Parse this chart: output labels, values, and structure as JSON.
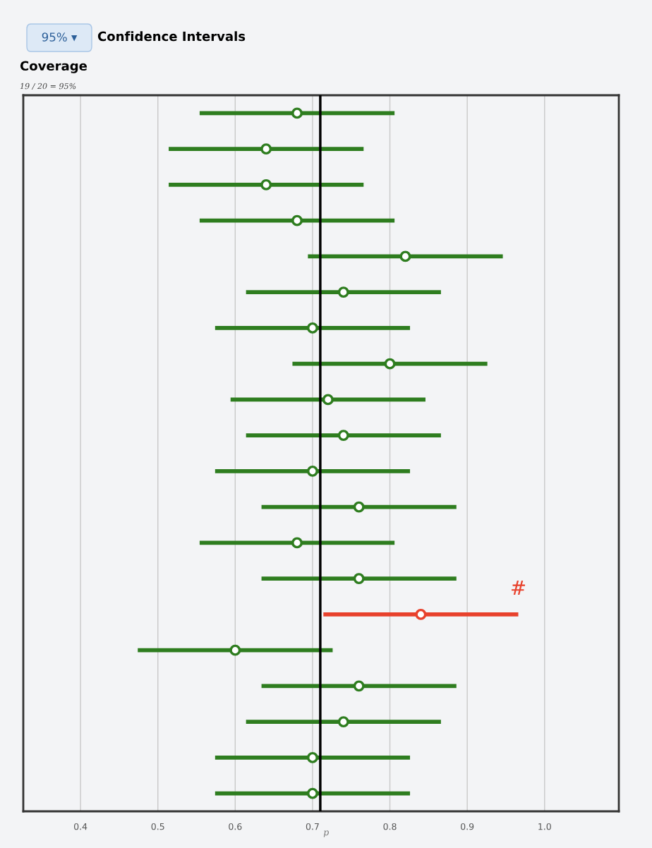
{
  "chart_data": {
    "type": "scatter",
    "orientation": "horizontal",
    "title": "Confidence Intervals",
    "subtitle": "Coverage",
    "annotations": [
      "95% ▾",
      "19 / 20 = 95%",
      "#"
    ],
    "categories": [
      null,
      null,
      null,
      null,
      null,
      null,
      null,
      null,
      null,
      null,
      null,
      null,
      null,
      null,
      null,
      null,
      null,
      null,
      null,
      null
    ],
    "values": [
      0.68,
      0.64,
      0.64,
      0.68,
      0.82,
      0.74,
      0.7,
      0.8,
      0.72,
      0.74,
      0.7,
      0.76,
      0.68,
      0.76,
      0.84,
      0.6,
      0.76,
      0.74,
      0.7,
      0.7
    ],
    "errors": [
      [
        0.554,
        0.806
      ],
      [
        0.514,
        0.766
      ],
      [
        0.514,
        0.766
      ],
      [
        0.554,
        0.806
      ],
      [
        0.694,
        0.946
      ],
      [
        0.614,
        0.866
      ],
      [
        0.574,
        0.826
      ],
      [
        0.674,
        0.926
      ],
      [
        0.594,
        0.846
      ],
      [
        0.614,
        0.866
      ],
      [
        0.574,
        0.826
      ],
      [
        0.634,
        0.886
      ],
      [
        0.554,
        0.806
      ],
      [
        0.634,
        0.886
      ],
      [
        0.714,
        0.966
      ],
      [
        0.474,
        0.726
      ],
      [
        0.634,
        0.886
      ],
      [
        0.614,
        0.866
      ],
      [
        0.574,
        0.826
      ],
      [
        0.574,
        0.826
      ]
    ],
    "colors": [
      "#2e7d1f",
      "#2e7d1f",
      "#2e7d1f",
      "#2e7d1f",
      "#2e7d1f",
      "#2e7d1f",
      "#2e7d1f",
      "#2e7d1f",
      "#2e7d1f",
      "#2e7d1f",
      "#2e7d1f",
      "#2e7d1f",
      "#2e7d1f",
      "#2e7d1f",
      "#e8412c",
      "#2e7d1f",
      "#2e7d1f",
      "#2e7d1f",
      "#2e7d1f",
      "#2e7d1f"
    ],
    "xlim": [
      0.326,
      1.096
    ],
    "xticks": [
      0.4,
      0.5,
      0.6,
      0.7,
      0.8,
      0.9,
      {
        "value": 1,
        "label": "1.0"
      }
    ],
    "ref_lines": [
      {
        "axis": "x",
        "value": 0.71,
        "label": "p",
        "color": "#000000"
      }
    ],
    "grid": "x",
    "marker": "circle"
  }
}
